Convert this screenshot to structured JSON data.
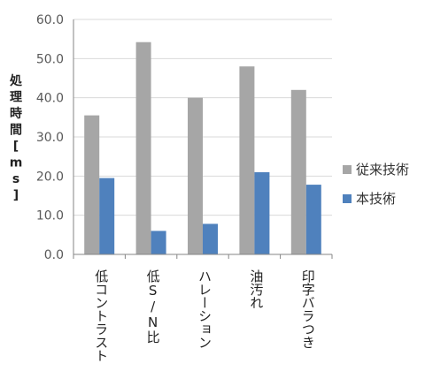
{
  "chart_data": {
    "type": "bar",
    "categories": [
      "低コントラスト",
      "低S/N比",
      "ハレーション",
      "油汚れ",
      "印字バラつき"
    ],
    "series": [
      {
        "name": "従来技術",
        "color": "#a6a6a6",
        "values": [
          35.5,
          54.2,
          40.0,
          48.0,
          42.0
        ]
      },
      {
        "name": "本技術",
        "color": "#4f81bd",
        "values": [
          19.5,
          6.0,
          7.8,
          21.0,
          17.8
        ]
      }
    ],
    "ylabel_chars": [
      "処",
      "理",
      "時",
      "間",
      "[",
      "m",
      "s",
      "]"
    ],
    "ylim": [
      0,
      60
    ],
    "yticks": [
      "0.0",
      "10.0",
      "20.0",
      "30.0",
      "40.0",
      "50.0",
      "60.0"
    ],
    "ytick_values": [
      0,
      10,
      20,
      30,
      40,
      50,
      60
    ],
    "grid": true,
    "legend_position": "right"
  }
}
